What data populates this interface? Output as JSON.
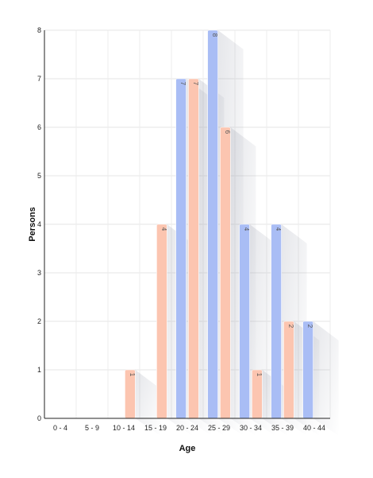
{
  "chart_data": {
    "type": "bar",
    "xlabel": "Age",
    "ylabel": "Persons",
    "ylim": [
      0,
      8
    ],
    "yticks": [
      "0",
      "1",
      "2",
      "3",
      "4",
      "5",
      "6",
      "7",
      "8"
    ],
    "grid": true,
    "categories": [
      "0 - 4",
      "5 - 9",
      "10 - 14",
      "15 - 19",
      "20 - 24",
      "25 - 29",
      "30 - 34",
      "35 - 39",
      "40 - 44"
    ],
    "series": [
      {
        "color": "#a9bdf5",
        "values": [
          0,
          0,
          0,
          0,
          7,
          8,
          4,
          4,
          2
        ]
      },
      {
        "color": "#fcc5b0",
        "values": [
          0,
          0,
          1,
          4,
          7,
          6,
          1,
          2,
          0
        ]
      }
    ]
  }
}
